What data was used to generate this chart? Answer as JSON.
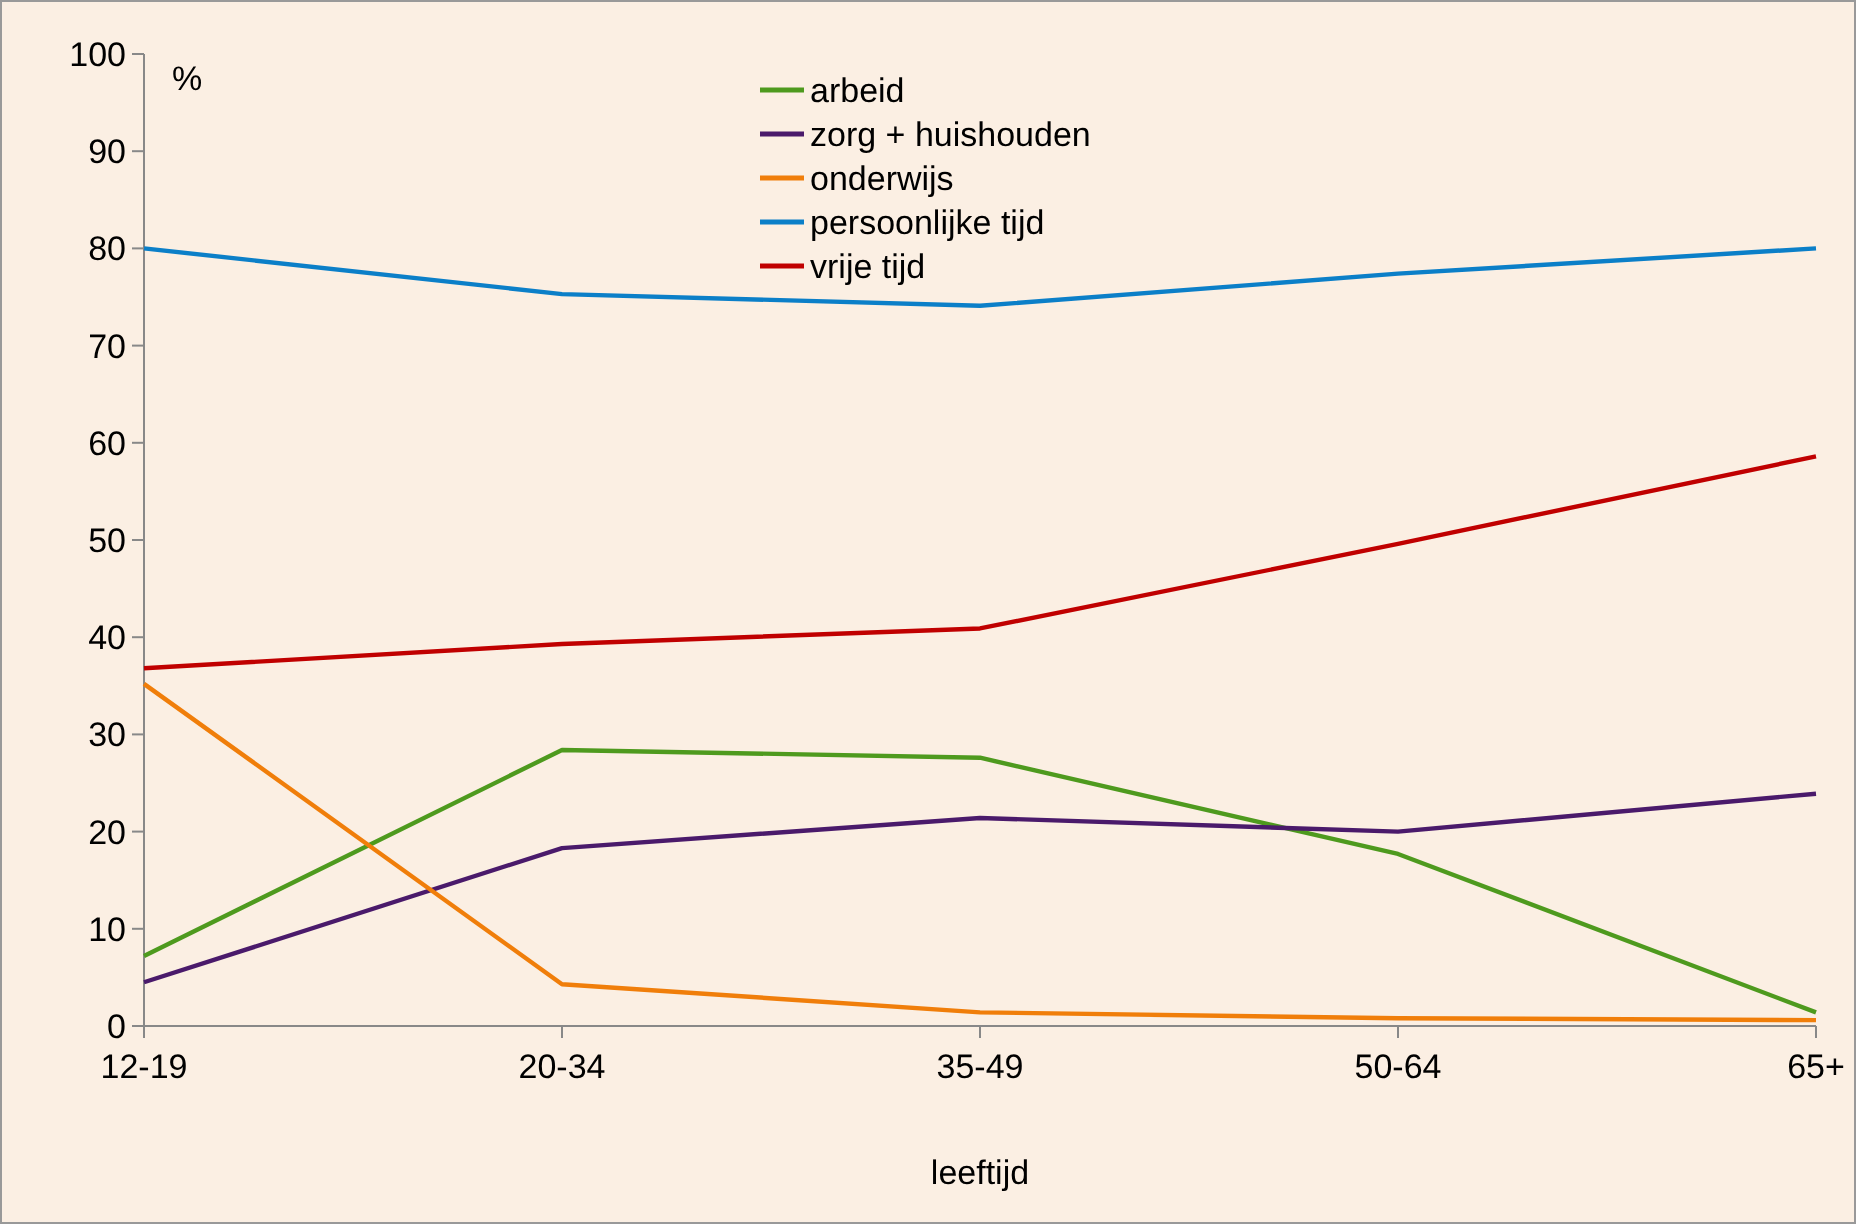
{
  "chart_data": {
    "type": "line",
    "xlabel": "leeftijd",
    "ylabel": "%",
    "categories": [
      "12-19",
      "20-34",
      "35-49",
      "50-64",
      "65+"
    ],
    "series": [
      {
        "name": "arbeid",
        "color": "#4e9a1e",
        "values": [
          7.2,
          28.4,
          27.6,
          17.7,
          1.4
        ]
      },
      {
        "name": "zorg + huishouden",
        "color": "#4a1a6b",
        "values": [
          4.5,
          18.3,
          21.4,
          20.0,
          23.9
        ]
      },
      {
        "name": "onderwijs",
        "color": "#f07e0a",
        "values": [
          35.2,
          4.3,
          1.4,
          0.8,
          0.6
        ]
      },
      {
        "name": "persoonlijke tijd",
        "color": "#0b7fc8",
        "values": [
          80.0,
          75.3,
          74.1,
          77.4,
          80.0
        ]
      },
      {
        "name": "vrije tijd",
        "color": "#c00000",
        "values": [
          36.8,
          39.3,
          40.9,
          49.6,
          58.6
        ]
      }
    ],
    "ylim": [
      0,
      100
    ],
    "yticks": [
      0,
      10,
      20,
      30,
      40,
      50,
      60,
      70,
      80,
      90,
      100
    ],
    "legend": "top",
    "grid": false,
    "marker": "none",
    "line_style": "solid"
  }
}
